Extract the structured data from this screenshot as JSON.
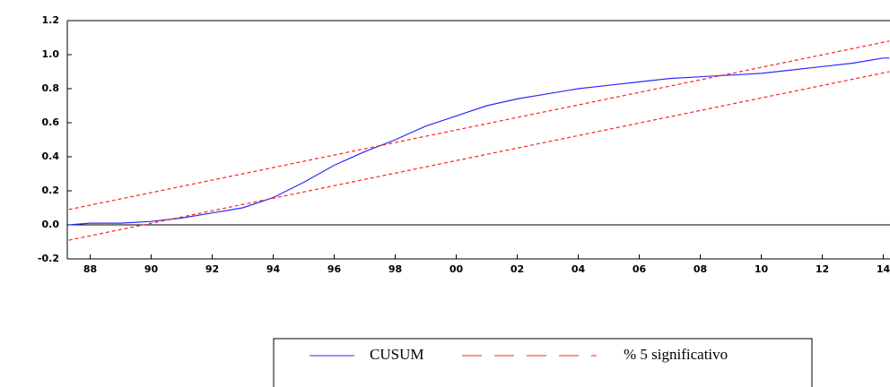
{
  "chart_data": {
    "type": "line",
    "xlim": [
      1987.25,
      2014.22
    ],
    "ylim": [
      -0.2,
      1.2
    ],
    "yticks": [
      -0.2,
      {
        "value": 0,
        "label": "0.0"
      },
      0.2,
      0.4,
      0.6,
      0.8,
      {
        "value": 1,
        "label": "1.0"
      },
      1.2
    ],
    "xticks": [
      {
        "value": 1988,
        "label": "88"
      },
      {
        "value": 1990,
        "label": "90"
      },
      {
        "value": 1992,
        "label": "92"
      },
      {
        "value": 1994,
        "label": "94"
      },
      {
        "value": 1996,
        "label": "96"
      },
      {
        "value": 1998,
        "label": "98"
      },
      {
        "value": 2000,
        "label": "00"
      },
      {
        "value": 2002,
        "label": "02"
      },
      {
        "value": 2004,
        "label": "04"
      },
      {
        "value": 2006,
        "label": "06"
      },
      {
        "value": 2008,
        "label": "08"
      },
      {
        "value": 2010,
        "label": "10"
      },
      {
        "value": 2012,
        "label": "12"
      },
      {
        "value": 2014,
        "label": "14"
      }
    ],
    "series": [
      {
        "name": "CUSUM",
        "color": "#2a2aff",
        "dashed": false,
        "x": [
          1987.3,
          1988,
          1989,
          1990,
          1991,
          1992,
          1993,
          1994,
          1995,
          1996,
          1997,
          1998,
          1999,
          2000,
          2001,
          2002,
          2003,
          2004,
          2005,
          2006,
          2007,
          2008,
          2009,
          2010,
          2011,
          2012,
          2013,
          2014,
          2014.2
        ],
        "values": [
          0.0,
          0.01,
          0.01,
          0.02,
          0.04,
          0.07,
          0.1,
          0.16,
          0.25,
          0.35,
          0.43,
          0.5,
          0.58,
          0.64,
          0.7,
          0.74,
          0.77,
          0.8,
          0.82,
          0.84,
          0.86,
          0.87,
          0.88,
          0.89,
          0.91,
          0.93,
          0.95,
          0.98,
          0.98
        ]
      },
      {
        "name": "% 5 significativo",
        "color": "#ff2020",
        "dashed": true,
        "x": [
          1987.3,
          2014.2
        ],
        "values": [
          0.09,
          1.08
        ]
      },
      {
        "color": "#ff2020",
        "dashed": true,
        "x": [
          1987.3,
          2014.2
        ],
        "values": [
          -0.09,
          0.9
        ]
      }
    ]
  }
}
